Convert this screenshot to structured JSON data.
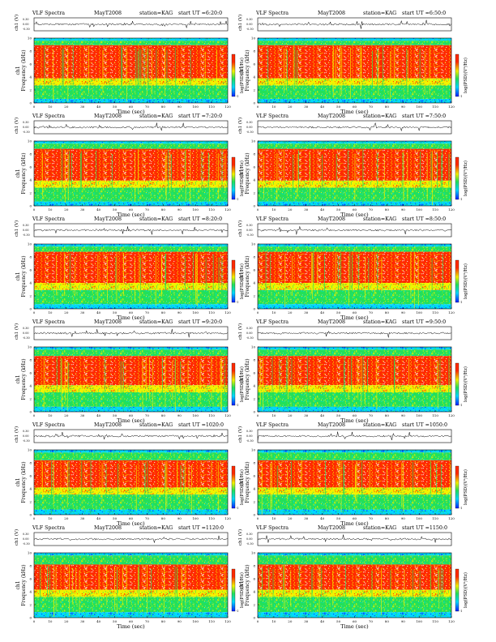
{
  "chart_data": {
    "type": "heatmap",
    "common": {
      "header_left": "VLF Spectra",
      "header_mid": "MayT2008",
      "header_station": "station=KAG",
      "header_start": "start  UT =",
      "top_ylabel": "ch1 (V)",
      "top_yticks": [
        "0.30",
        "0.00",
        "-0.30"
      ],
      "ylabel": "ch1\nFrequency (kHz)",
      "xlabel": "Time  (sec)",
      "xticks": [
        "0",
        "10",
        "20",
        "30",
        "40",
        "50",
        "60",
        "70",
        "80",
        "90",
        "100",
        "110",
        "120"
      ],
      "yticks": [
        "0",
        "2",
        "4",
        "6",
        "8",
        "10"
      ],
      "xlim": [
        0,
        120
      ],
      "ylim": [
        0,
        10
      ],
      "colorbar_label": "log(PSD)(V²/Hz)",
      "colorbar_ticks": [
        "-1",
        ""
      ],
      "colors": [
        "#0a1cff",
        "#00d8ff",
        "#22e05a",
        "#f2f200",
        "#ff2a00",
        "#ffffff"
      ]
    },
    "panels": [
      {
        "start_ut": "6:20:0",
        "band_top": 8.9,
        "floor": 1.4
      },
      {
        "start_ut": "6:50:0",
        "band_top": 8.9,
        "floor": 1.4
      },
      {
        "start_ut": "7:20:0",
        "band_top": 8.8,
        "floor": 1.5
      },
      {
        "start_ut": "7:50:0",
        "band_top": 8.8,
        "floor": 1.5
      },
      {
        "start_ut": "8:20:0",
        "band_top": 8.8,
        "floor": 1.6
      },
      {
        "start_ut": "8:50:0",
        "band_top": 8.8,
        "floor": 1.6
      },
      {
        "start_ut": "9:20:0",
        "band_top": 8.6,
        "floor": 1.7
      },
      {
        "start_ut": "9:50:0",
        "band_top": 8.6,
        "floor": 1.7
      },
      {
        "start_ut": "1020:0",
        "band_top": 8.4,
        "floor": 1.8
      },
      {
        "start_ut": "1050:0",
        "band_top": 8.4,
        "floor": 1.8
      },
      {
        "start_ut": "1120:0",
        "band_top": 8.2,
        "floor": 1.9
      },
      {
        "start_ut": "1150:0",
        "band_top": 8.2,
        "floor": 1.9
      }
    ]
  }
}
